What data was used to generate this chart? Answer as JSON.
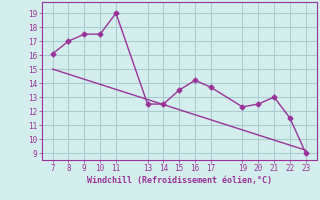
{
  "x": [
    7,
    8,
    9,
    10,
    11,
    13,
    14,
    15,
    16,
    17,
    19,
    20,
    21,
    22,
    23
  ],
  "y": [
    16.1,
    17.0,
    17.5,
    17.5,
    19.0,
    12.5,
    12.5,
    13.5,
    14.2,
    13.7,
    12.3,
    12.5,
    13.0,
    11.5,
    9.0
  ],
  "trend_x": [
    7,
    23
  ],
  "trend_y": [
    15.0,
    9.2
  ],
  "x_ticks": [
    7,
    8,
    9,
    10,
    11,
    13,
    14,
    15,
    16,
    17,
    19,
    20,
    21,
    22,
    23
  ],
  "y_ticks": [
    9,
    10,
    11,
    12,
    13,
    14,
    15,
    16,
    17,
    18,
    19
  ],
  "xlabel": "Windchill (Refroidissement éolien,°C)",
  "line_color": "#993399",
  "bg_color": "#d4eeee",
  "grid_color": "#aacccc",
  "figsize": [
    3.2,
    2.0
  ],
  "dpi": 100
}
